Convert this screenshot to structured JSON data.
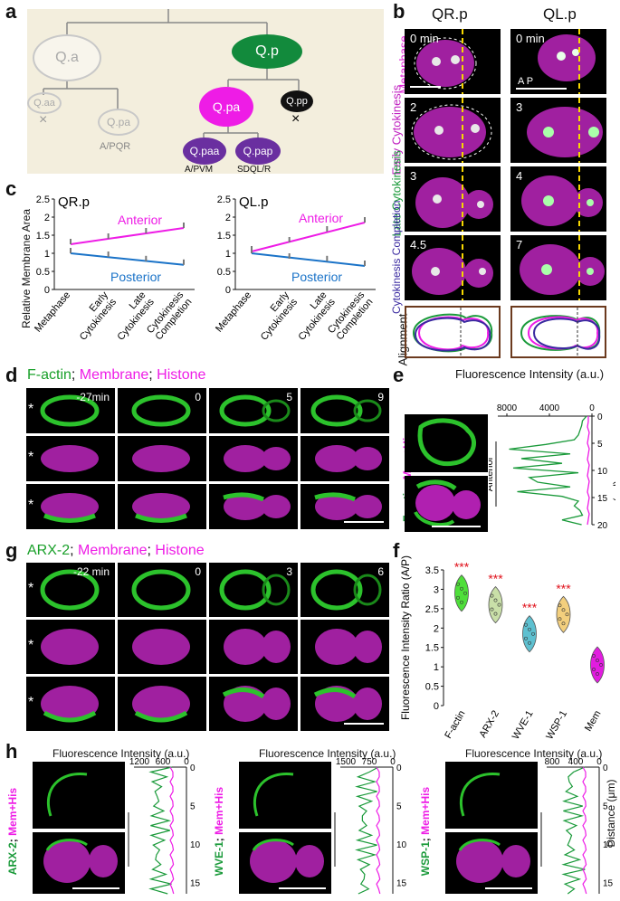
{
  "panels": {
    "a": "a",
    "b": "b",
    "c": "c",
    "d": "d",
    "e": "e",
    "f": "f",
    "g": "g",
    "h": "h"
  },
  "panel_a": {
    "nodes": {
      "qa": "Q.a",
      "qp": "Q.p",
      "qaa": "Q.aa",
      "qpa_left": "Q.pa",
      "qpa": "Q.pa",
      "qpp": "Q.pp",
      "qpaa": "Q.paa",
      "qpap": "Q.pap"
    },
    "fates": {
      "apqr": "A/PQR",
      "apvm": "A/PVM",
      "sdql": "SDQL/R"
    },
    "death_mark": "×",
    "colors": {
      "grey": "#c8c8c8",
      "green": "#128a3c",
      "magenta": "#ee1ce6",
      "purple": "#6a2fa0",
      "black": "#111111",
      "bg": "#f3eedd"
    }
  },
  "panel_b": {
    "col_titles": [
      "QR.p",
      "QL.p"
    ],
    "rows": [
      {
        "label": "Metaphase",
        "color": "#e020d8",
        "times": [
          "0 min",
          "0 min"
        ]
      },
      {
        "label": "Early Cytokinesis",
        "color": "#c020c0",
        "times": [
          "2",
          "3"
        ]
      },
      {
        "label": "Late Cytokinesis",
        "color": "#1a9a3a",
        "times": [
          "3",
          "4"
        ]
      },
      {
        "label": "Cytokinesis Completion",
        "color": "#3a2aa0",
        "times": [
          "4.5",
          "7"
        ]
      }
    ],
    "alignment_label": "Alignment",
    "ap_label": "A  P"
  },
  "panel_c": {
    "charts": [
      {
        "title": "QR.p",
        "ylim": [
          0,
          2.5
        ],
        "yticks": [
          "0",
          "0.5",
          "1",
          "1.5",
          "2",
          "2.5"
        ]
      },
      {
        "title": "QL.p",
        "ylim": [
          0,
          2.5
        ],
        "yticks": [
          "0",
          "0.5",
          "1",
          "1.5",
          "2",
          "2.5"
        ]
      }
    ],
    "ylabel": "Relative Membrane Area",
    "anterior": "Anterior",
    "posterior": "Posterior",
    "xticks": [
      "Metaphase",
      "Early Cytokinesis",
      "Late Cytokinesis",
      "Cytokinesis Completion"
    ]
  },
  "chart_data": [
    {
      "type": "line",
      "title": "QR.p",
      "categories": [
        "Metaphase",
        "Early Cytokinesis",
        "Late Cytokinesis",
        "Cytokinesis Completion"
      ],
      "series": [
        {
          "name": "Anterior",
          "values": [
            1.25,
            1.4,
            1.55,
            1.7
          ]
        },
        {
          "name": "Posterior",
          "values": [
            1.0,
            0.9,
            0.78,
            0.68
          ]
        }
      ],
      "ylabel": "Relative Membrane Area",
      "ylim": [
        0,
        2.5
      ]
    },
    {
      "type": "line",
      "title": "QL.p",
      "categories": [
        "Metaphase",
        "Early Cytokinesis",
        "Late Cytokinesis",
        "Cytokinesis Completion"
      ],
      "series": [
        {
          "name": "Anterior",
          "values": [
            1.05,
            1.3,
            1.6,
            1.85
          ]
        },
        {
          "name": "Posterior",
          "values": [
            1.0,
            0.85,
            0.78,
            0.65
          ]
        }
      ],
      "ylabel": "Relative Membrane Area",
      "ylim": [
        0,
        2.5
      ]
    },
    {
      "type": "scatter",
      "title": "",
      "categories": [
        "F-actin",
        "ARX-2",
        "WVE-1",
        "WSP-1",
        "Mem"
      ],
      "series": [
        {
          "name": "",
          "values": [
            2.9,
            2.6,
            1.85,
            2.35,
            1.05
          ]
        }
      ],
      "ylabel": "Fluorescence Intensity Ratio (A/P)",
      "ylim": [
        0,
        3.5
      ],
      "significance": [
        "***",
        "***",
        "***",
        "***",
        ""
      ]
    }
  ],
  "panel_d": {
    "title_parts": [
      "F-actin",
      "; ",
      "Membrane",
      "; ",
      "Histone"
    ],
    "times": [
      "-27min",
      "0",
      "5",
      "9"
    ],
    "star": "*"
  },
  "panel_e": {
    "title": "Fluorescence Intensity (a.u.)",
    "xticks": [
      "8000",
      "4000",
      "0"
    ],
    "yticks": [
      "0",
      "5",
      "10",
      "15",
      "20"
    ],
    "ylabel": "Distance (μm)",
    "side_label_green": "F-actin",
    "side_label_sep": "; ",
    "side_label_mag": "Mem+His",
    "anterior": "Anterior"
  },
  "panel_f": {
    "ylabel": "Fluorescence Intensity Ratio (A/P)",
    "yticks": [
      "0",
      "0.5",
      "1",
      "1.5",
      "2",
      "2.5",
      "3",
      "3.5"
    ],
    "categories": [
      "F-actin",
      "ARX-2",
      "WVE-1",
      "WSP-1",
      "Mem"
    ],
    "colors": [
      "#4fdf3a",
      "#c9dfa8",
      "#5ec0d0",
      "#f3cf7d",
      "#e21ce0"
    ],
    "sig": "***"
  },
  "panel_g": {
    "title_parts": [
      "ARX-2",
      "; ",
      "Membrane",
      "; ",
      "Histone"
    ],
    "times": [
      "-22 min",
      "0",
      "3",
      "6"
    ],
    "star": "*"
  },
  "panel_h": {
    "blocks": [
      {
        "name": "ARX-2",
        "title": "Fluorescence Intensity (a.u.)",
        "xticks": [
          "1200",
          "600",
          "0"
        ]
      },
      {
        "name": "WVE-1",
        "title": "Fluorescence Intensity (a.u.)",
        "xticks": [
          "1500",
          "750",
          "0"
        ]
      },
      {
        "name": "WSP-1",
        "title": "Fluorescence Intensity (a.u.)",
        "xticks": [
          "800",
          "400",
          "0"
        ]
      }
    ],
    "sep": "; ",
    "mem": "Mem+His",
    "yticks_a": [
      "0",
      "5",
      "10",
      "15"
    ],
    "yticks_b": [
      "0",
      "5",
      "10",
      "15"
    ],
    "yticks_c": [
      "0",
      "5",
      "10",
      "15"
    ],
    "ylabel": "Distance (μm)"
  }
}
